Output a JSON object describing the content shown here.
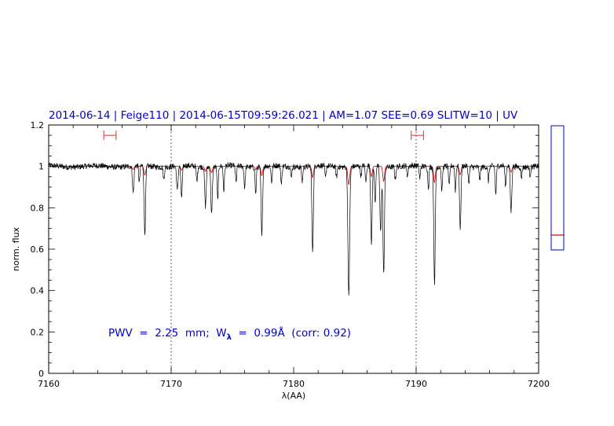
{
  "chart_data": {
    "type": "line",
    "title": "2014-06-14 | Feige110 | 2014-06-15T09:59:26.021 | AM=1.07 SEE=0.69 SLITW=10 | UV",
    "xlabel": "λ(AA)",
    "ylabel": "norm. flux",
    "xlim": [
      7160,
      7200
    ],
    "ylim": [
      0,
      1.2
    ],
    "xticks": [
      "7160",
      "7170",
      "7180",
      "7190",
      "7200"
    ],
    "yticks": [
      "0",
      "0.2",
      "0.4",
      "0.6",
      "0.8",
      "1",
      "1.2"
    ],
    "grid": false,
    "vlines": [
      7170,
      7190
    ],
    "reference_level": 1.0,
    "annotation": {
      "pre": "PWV  =  2.25  mm;  W",
      "sub": "λ",
      "post": "  =  0.99Å  (corr: 0.92)"
    },
    "intervals": [
      {
        "from": 7164.5,
        "to": 7165.5,
        "y": 1.15
      },
      {
        "from": 7189.6,
        "to": 7190.6,
        "y": 1.15
      }
    ],
    "side_gauge": {
      "range": [
        0,
        1
      ],
      "level": 0.12
    },
    "series": [
      {
        "color": "#000000",
        "absorption_lines": [
          [
            7166.9,
            0.13,
            0.06
          ],
          [
            7167.4,
            0.08,
            0.05
          ],
          [
            7167.85,
            0.33,
            0.06
          ],
          [
            7169.4,
            0.06,
            0.05
          ],
          [
            7170.5,
            0.12,
            0.06
          ],
          [
            7170.85,
            0.15,
            0.06
          ],
          [
            7172.1,
            0.07,
            0.05
          ],
          [
            7172.8,
            0.19,
            0.06
          ],
          [
            7173.3,
            0.23,
            0.06
          ],
          [
            7173.8,
            0.16,
            0.05
          ],
          [
            7174.3,
            0.12,
            0.05
          ],
          [
            7175.3,
            0.08,
            0.05
          ],
          [
            7176.0,
            0.1,
            0.05
          ],
          [
            7176.9,
            0.13,
            0.05
          ],
          [
            7177.4,
            0.34,
            0.06
          ],
          [
            7178.2,
            0.08,
            0.05
          ],
          [
            7179.0,
            0.09,
            0.05
          ],
          [
            7179.8,
            0.05,
            0.05
          ],
          [
            7180.7,
            0.07,
            0.05
          ],
          [
            7181.55,
            0.41,
            0.06
          ],
          [
            7182.6,
            0.06,
            0.05
          ],
          [
            7183.5,
            0.05,
            0.05
          ],
          [
            7184.5,
            0.62,
            0.07
          ],
          [
            7185.5,
            0.05,
            0.05
          ],
          [
            7185.9,
            0.08,
            0.05
          ],
          [
            7186.35,
            0.37,
            0.06
          ],
          [
            7186.65,
            0.18,
            0.05
          ],
          [
            7187.1,
            0.32,
            0.06
          ],
          [
            7187.35,
            0.52,
            0.06
          ],
          [
            7188.3,
            0.06,
            0.05
          ],
          [
            7189.3,
            0.05,
            0.05
          ],
          [
            7190.3,
            0.06,
            0.05
          ],
          [
            7191.0,
            0.1,
            0.05
          ],
          [
            7191.5,
            0.56,
            0.06
          ],
          [
            7192.1,
            0.12,
            0.05
          ],
          [
            7192.7,
            0.1,
            0.05
          ],
          [
            7193.2,
            0.12,
            0.05
          ],
          [
            7193.6,
            0.3,
            0.06
          ],
          [
            7194.3,
            0.08,
            0.05
          ],
          [
            7195.2,
            0.06,
            0.05
          ],
          [
            7195.9,
            0.07,
            0.05
          ],
          [
            7196.5,
            0.14,
            0.05
          ],
          [
            7197.3,
            0.1,
            0.05
          ],
          [
            7197.75,
            0.22,
            0.06
          ],
          [
            7198.6,
            0.05,
            0.05
          ],
          [
            7199.3,
            0.04,
            0.05
          ]
        ]
      },
      {
        "color": "#cc0000",
        "model_lines": [
          [
            7166.9,
            0.1,
            0.07
          ],
          [
            7167.85,
            0.28,
            0.07
          ],
          [
            7170.85,
            0.12,
            0.07
          ],
          [
            7172.8,
            0.16,
            0.07
          ],
          [
            7173.3,
            0.2,
            0.07
          ],
          [
            7176.9,
            0.1,
            0.06
          ],
          [
            7177.4,
            0.3,
            0.07
          ],
          [
            7181.55,
            0.36,
            0.07
          ],
          [
            7184.5,
            0.58,
            0.08
          ],
          [
            7186.35,
            0.33,
            0.07
          ],
          [
            7187.35,
            0.48,
            0.07
          ],
          [
            7191.5,
            0.52,
            0.07
          ],
          [
            7193.6,
            0.27,
            0.07
          ],
          [
            7197.75,
            0.19,
            0.07
          ]
        ]
      }
    ]
  }
}
